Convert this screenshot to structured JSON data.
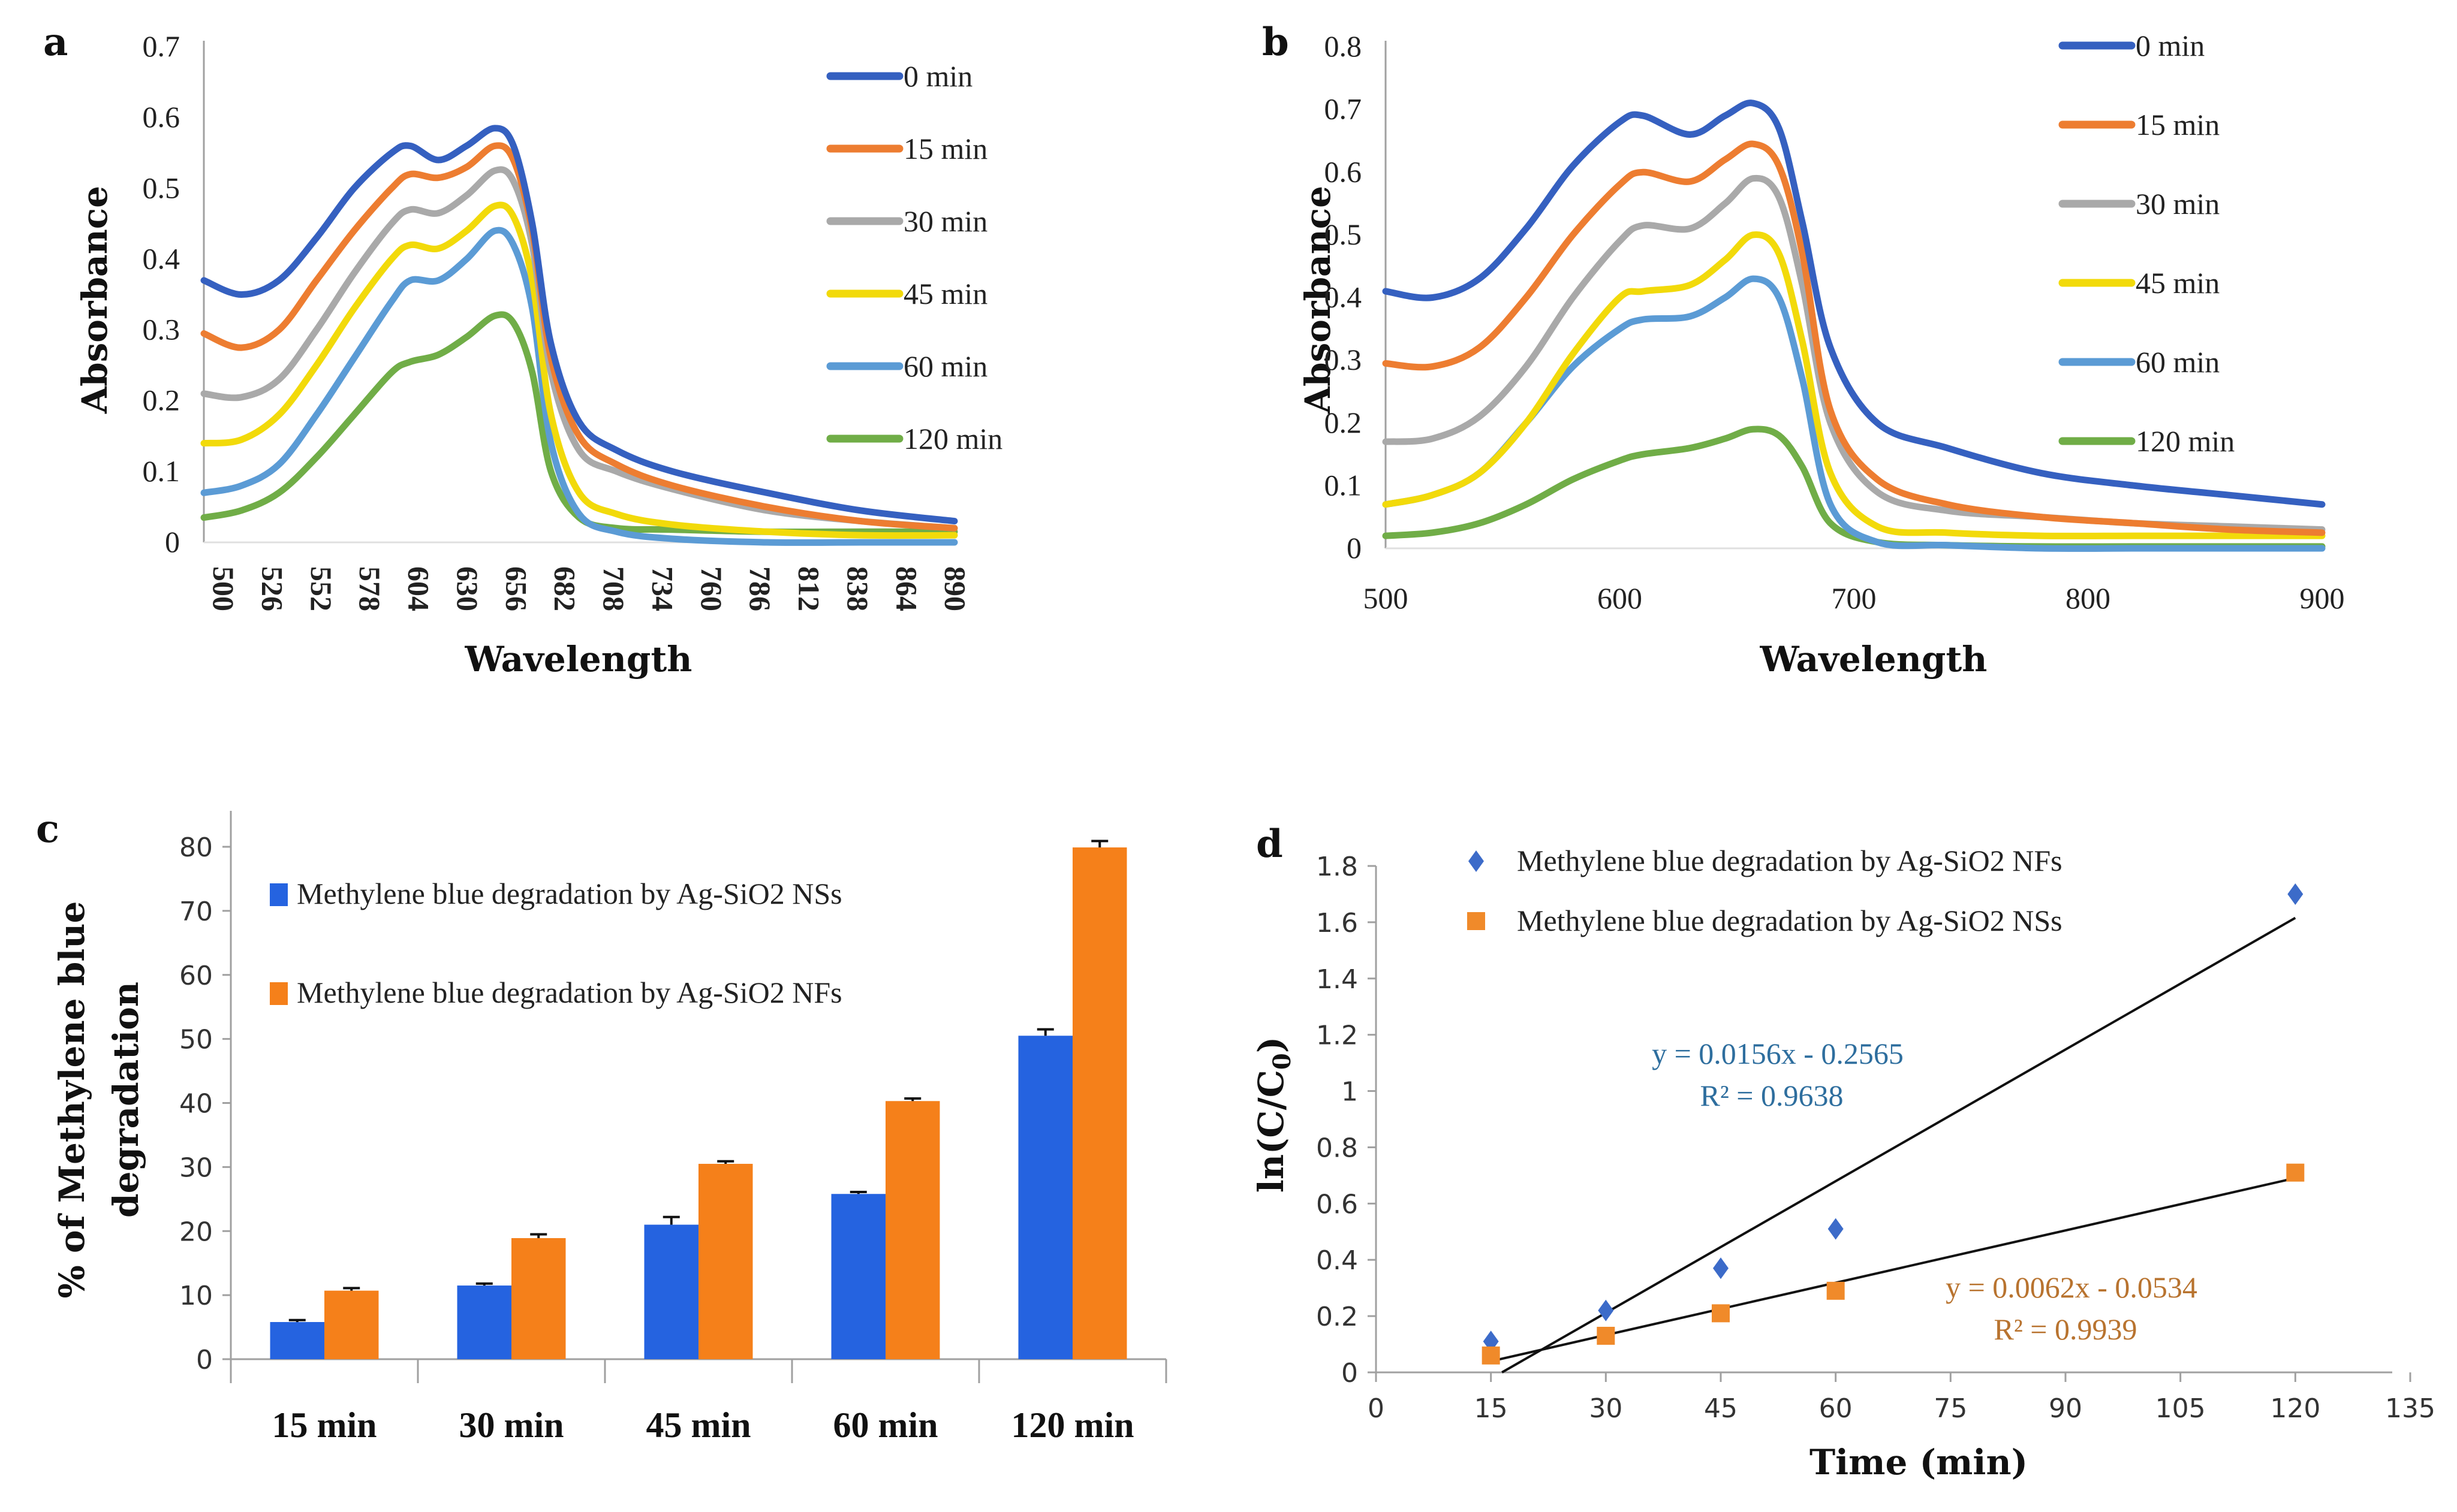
{
  "colors": {
    "t0": "#3560C0",
    "t15": "#ED7D31",
    "t30": "#A9A9A9",
    "t45": "#F2DA0A",
    "t60": "#5B9BD5",
    "t120": "#70AD47",
    "bar_blue": "#2563E0",
    "bar_orange": "#F5801A",
    "eq_blue": "#2E6E9E",
    "eq_orange": "#B8732F",
    "axis": "#A0A0A0"
  },
  "chart_data": [
    {
      "panel": "a",
      "type": "line",
      "title": "",
      "xlabel": "Wavelength",
      "ylabel": "Absorbance",
      "xlim": [
        500,
        900
      ],
      "ylim": [
        0,
        0.7
      ],
      "yticks": [
        "0",
        "0.1",
        "0.2",
        "0.3",
        "0.4",
        "0.5",
        "0.6",
        "0.7"
      ],
      "xticks": [
        "500",
        "526",
        "552",
        "578",
        "604",
        "630",
        "656",
        "682",
        "708",
        "734",
        "760",
        "786",
        "812",
        "838",
        "864",
        "890"
      ],
      "legend_position": "top-right",
      "x": [
        500,
        520,
        540,
        560,
        580,
        600,
        610,
        625,
        640,
        655,
        665,
        675,
        685,
        700,
        720,
        750,
        800,
        850,
        900
      ],
      "series": [
        {
          "name": "0 min",
          "color_key": "t0",
          "values": [
            0.37,
            0.35,
            0.37,
            0.43,
            0.5,
            0.55,
            0.56,
            0.54,
            0.56,
            0.585,
            0.56,
            0.45,
            0.28,
            0.17,
            0.13,
            0.1,
            0.07,
            0.045,
            0.03
          ]
        },
        {
          "name": "15 min",
          "color_key": "t15",
          "values": [
            0.295,
            0.275,
            0.3,
            0.37,
            0.44,
            0.5,
            0.52,
            0.515,
            0.53,
            0.56,
            0.54,
            0.44,
            0.26,
            0.15,
            0.11,
            0.08,
            0.05,
            0.03,
            0.02
          ]
        },
        {
          "name": "30 min",
          "color_key": "t30",
          "values": [
            0.21,
            0.205,
            0.23,
            0.3,
            0.38,
            0.45,
            0.47,
            0.465,
            0.49,
            0.525,
            0.51,
            0.42,
            0.24,
            0.13,
            0.1,
            0.075,
            0.045,
            0.03,
            0.02
          ]
        },
        {
          "name": "45 min",
          "color_key": "t45",
          "values": [
            0.14,
            0.145,
            0.18,
            0.25,
            0.33,
            0.4,
            0.42,
            0.415,
            0.44,
            0.475,
            0.46,
            0.37,
            0.18,
            0.07,
            0.04,
            0.025,
            0.015,
            0.01,
            0.01
          ]
        },
        {
          "name": "60 min",
          "color_key": "t60",
          "values": [
            0.07,
            0.08,
            0.11,
            0.18,
            0.26,
            0.34,
            0.37,
            0.37,
            0.4,
            0.44,
            0.42,
            0.33,
            0.14,
            0.04,
            0.015,
            0.005,
            0.0,
            0.0,
            0.0
          ]
        },
        {
          "name": "120 min",
          "color_key": "t120",
          "values": [
            0.035,
            0.045,
            0.07,
            0.12,
            0.18,
            0.24,
            0.255,
            0.265,
            0.29,
            0.32,
            0.31,
            0.24,
            0.1,
            0.035,
            0.02,
            0.018,
            0.015,
            0.015,
            0.015
          ]
        }
      ]
    },
    {
      "panel": "b",
      "type": "line",
      "title": "",
      "xlabel": "Wavelength",
      "ylabel": "Absorbance",
      "xlim": [
        500,
        900
      ],
      "ylim": [
        0,
        0.8
      ],
      "yticks": [
        "0",
        "0.1",
        "0.2",
        "0.3",
        "0.4",
        "0.5",
        "0.6",
        "0.7",
        "0.8"
      ],
      "xticks": [
        "500",
        "600",
        "700",
        "800",
        "900"
      ],
      "legend_position": "top-right",
      "x": [
        500,
        520,
        540,
        560,
        580,
        600,
        610,
        630,
        645,
        657,
        668,
        678,
        690,
        710,
        740,
        780,
        820,
        860,
        900
      ],
      "series": [
        {
          "name": "0 min",
          "color_key": "t0",
          "values": [
            0.41,
            0.4,
            0.43,
            0.51,
            0.61,
            0.68,
            0.69,
            0.66,
            0.69,
            0.71,
            0.67,
            0.52,
            0.32,
            0.2,
            0.16,
            0.12,
            0.1,
            0.085,
            0.07
          ]
        },
        {
          "name": "15 min",
          "color_key": "t15",
          "values": [
            0.295,
            0.29,
            0.32,
            0.4,
            0.5,
            0.58,
            0.6,
            0.585,
            0.62,
            0.645,
            0.61,
            0.47,
            0.22,
            0.11,
            0.07,
            0.05,
            0.04,
            0.03,
            0.025
          ]
        },
        {
          "name": "30 min",
          "color_key": "t30",
          "values": [
            0.17,
            0.175,
            0.21,
            0.29,
            0.4,
            0.49,
            0.515,
            0.51,
            0.55,
            0.59,
            0.56,
            0.42,
            0.2,
            0.09,
            0.06,
            0.05,
            0.04,
            0.035,
            0.03
          ]
        },
        {
          "name": "45 min",
          "color_key": "t45",
          "values": [
            0.07,
            0.085,
            0.12,
            0.2,
            0.31,
            0.4,
            0.41,
            0.42,
            0.46,
            0.5,
            0.47,
            0.33,
            0.12,
            0.035,
            0.025,
            0.02,
            0.02,
            0.02,
            0.02
          ]
        },
        {
          "name": "60 min",
          "color_key": "t60",
          "values": [
            0.07,
            0.085,
            0.12,
            0.2,
            0.29,
            0.35,
            0.365,
            0.37,
            0.4,
            0.43,
            0.4,
            0.27,
            0.07,
            0.01,
            0.005,
            0.0,
            0.0,
            0.0,
            0.0
          ]
        },
        {
          "name": "120 min",
          "color_key": "t120",
          "values": [
            0.02,
            0.025,
            0.04,
            0.07,
            0.11,
            0.14,
            0.15,
            0.16,
            0.175,
            0.19,
            0.18,
            0.13,
            0.04,
            0.01,
            0.005,
            0.003,
            0.003,
            0.003,
            0.003
          ]
        }
      ]
    },
    {
      "panel": "c",
      "type": "bar",
      "title": "",
      "xlabel": "",
      "ylabel": "% of Methylene blue degradation",
      "ylim": [
        0,
        80
      ],
      "yticks": [
        "0",
        "10",
        "20",
        "30",
        "40",
        "50",
        "60",
        "70",
        "80"
      ],
      "categories": [
        "15 min",
        "30 min",
        "45 min",
        "60 min",
        "120 min"
      ],
      "legend_position": "top-left",
      "series": [
        {
          "name": "Methylene blue degradation by Ag-SiO2 NSs",
          "color_key": "bar_blue",
          "values": [
            5.8,
            11.5,
            21.0,
            25.8,
            50.5
          ],
          "errors": [
            0.3,
            0.3,
            1.2,
            0.3,
            1.0
          ]
        },
        {
          "name": "Methylene blue degradation by Ag-SiO2 NFs",
          "color_key": "bar_orange",
          "values": [
            10.7,
            18.9,
            30.5,
            40.3,
            79.9
          ],
          "errors": [
            0.4,
            0.6,
            0.4,
            0.4,
            1.0
          ]
        }
      ]
    },
    {
      "panel": "d",
      "type": "scatter",
      "title": "",
      "xlabel": "Time (min)",
      "ylabel": "ln(C/C0)",
      "xlim": [
        0,
        135
      ],
      "ylim": [
        0,
        1.8
      ],
      "xticks": [
        "0",
        "15",
        "30",
        "45",
        "60",
        "75",
        "90",
        "105",
        "120",
        "135"
      ],
      "yticks": [
        "0",
        "0.2",
        "0.4",
        "0.6",
        "0.8",
        "1",
        "1.2",
        "1.4",
        "1.6",
        "1.8"
      ],
      "legend_position": "top",
      "series": [
        {
          "name": "Methylene blue degradation by Ag-SiO2 NFs",
          "marker": "diamond",
          "color_key": "t0",
          "x": [
            15,
            30,
            45,
            60,
            120
          ],
          "y": [
            0.11,
            0.22,
            0.37,
            0.51,
            1.7
          ],
          "trendline": {
            "slope": 0.0156,
            "intercept": -0.2565,
            "equation": "y = 0.0156x - 0.2565",
            "r2": "R² = 0.9638"
          }
        },
        {
          "name": "Methylene blue degradation by Ag-SiO2 NSs",
          "marker": "square",
          "color_key": "bar_orange",
          "x": [
            15,
            30,
            45,
            60,
            120
          ],
          "y": [
            0.06,
            0.13,
            0.21,
            0.29,
            0.71
          ],
          "trendline": {
            "slope": 0.0062,
            "intercept": -0.0534,
            "equation": "y = 0.0062x - 0.0534",
            "r2": "R² = 0.9939"
          }
        }
      ]
    }
  ],
  "labels": {
    "a": "a",
    "b": "b",
    "c": "c",
    "d": "d",
    "wavelength": "Wavelength",
    "absorbance": "Absorbance",
    "c_ylabel_1": "% of Methylene blue",
    "c_ylabel_2": "degradation",
    "d_xlabel": "Time (min)",
    "d_ylabel": "ln(C/C",
    "d_ylabel_sub": "0",
    "d_ylabel_end": ")"
  }
}
